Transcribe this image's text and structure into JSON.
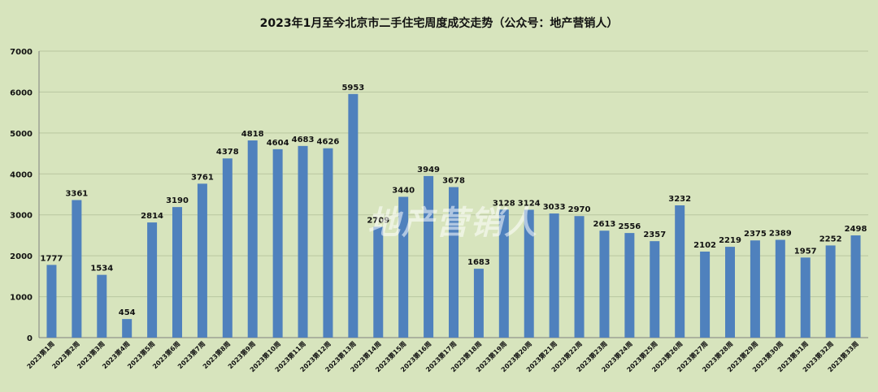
{
  "chart_data": {
    "type": "bar",
    "title": "2023年1月至今北京市二手住宅周度成交走势（公众号：地产营销人）",
    "watermark": "地产营销人",
    "xlabel": "",
    "ylabel": "",
    "ylim": [
      0,
      7000
    ],
    "yticks": [
      0,
      1000,
      2000,
      3000,
      4000,
      5000,
      6000,
      7000
    ],
    "grid": true,
    "legend": "none",
    "bar_color": "#4f81bd",
    "background": "#d7e4bd",
    "categories": [
      "2023第1周",
      "2023第2周",
      "2023第3周",
      "2023第4周",
      "2023第5周",
      "2023第6周",
      "2023第7周",
      "2023第8周",
      "2023第9周",
      "2023第10周",
      "2023第11周",
      "2023第12周",
      "2023第13周",
      "2023第14周",
      "2023第15周",
      "2023第16周",
      "2023第17周",
      "2023第18周",
      "2023第19周",
      "2023第20周",
      "2023第21周",
      "2023第22周",
      "2023第23周",
      "2023第24周",
      "2023第25周",
      "2023第26周",
      "2023第27周",
      "2023第28周",
      "2023第29周",
      "2023第30周",
      "2023第31周",
      "2023第32周",
      "2023第33周"
    ],
    "values": [
      1777,
      3361,
      1534,
      454,
      2814,
      3190,
      3761,
      4378,
      4818,
      4604,
      4683,
      4626,
      5953,
      2709,
      3440,
      3949,
      3678,
      1683,
      3128,
      3124,
      3033,
      2970,
      2613,
      2556,
      2357,
      3232,
      2102,
      2219,
      2375,
      2389,
      1957,
      2252,
      2498
    ]
  }
}
